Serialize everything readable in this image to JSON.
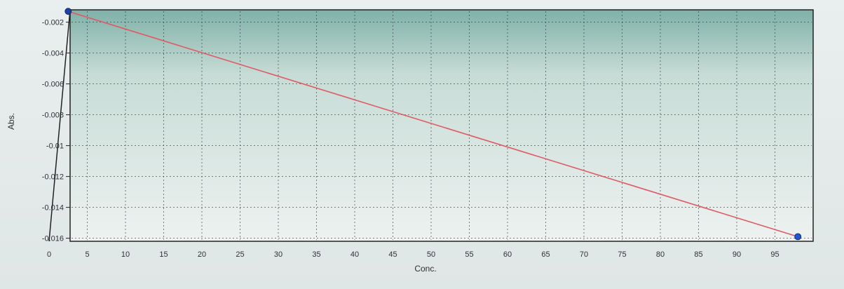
{
  "chart_data": {
    "type": "line",
    "title": "",
    "xlabel": "Conc.",
    "ylabel": "Abs.",
    "xlim": [
      0,
      100
    ],
    "ylim": [
      -0.0162,
      -0.0012
    ],
    "x_ticks": [
      0,
      5,
      10,
      15,
      20,
      25,
      30,
      35,
      40,
      45,
      50,
      55,
      60,
      65,
      70,
      75,
      80,
      85,
      90,
      95
    ],
    "x_tick_labels": [
      "0",
      "5",
      "10",
      "15",
      "20",
      "25",
      "30",
      "35",
      "40",
      "45",
      "50",
      "55",
      "60",
      "65",
      "70",
      "75",
      "80",
      "85",
      "90",
      "95"
    ],
    "y_ticks": [
      -0.002,
      -0.004,
      -0.006,
      -0.008,
      -0.01,
      -0.012,
      -0.014,
      -0.016
    ],
    "y_tick_labels": [
      "-0.002",
      "-0.004",
      "-0.006",
      "-0.008",
      "-0.01",
      "-0.012",
      "-0.014",
      "-0.016"
    ],
    "grid": true,
    "series": [
      {
        "name": "",
        "color": "#e05a66",
        "x": [
          2.5,
          98
        ],
        "y": [
          -0.0013,
          -0.0159
        ]
      }
    ],
    "markers": [
      {
        "x": 2.5,
        "y": -0.0013,
        "color": "#1f3fa6"
      },
      {
        "x": 98,
        "y": -0.0159,
        "color": "#1f56d6"
      }
    ],
    "colors": {
      "plot_top": "#7fb1a8",
      "plot_bottom": "#eef2f1",
      "grid": "#2f3a3f",
      "frame": "#222222"
    }
  }
}
